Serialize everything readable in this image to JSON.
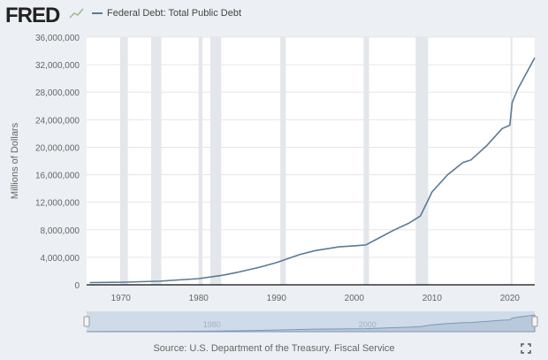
{
  "header": {
    "logo": "FRED",
    "legend_label": "Federal Debt: Total Public Debt",
    "source": "Source: U.S. Department of the Treasury. Fiscal Service"
  },
  "colors": {
    "line": "#5b7a95",
    "recession": "#e3e6ea",
    "nav_fill": "#b9c9dc"
  },
  "chart_data": {
    "type": "line",
    "title": "Federal Debt: Total Public Debt",
    "ylabel": "Millions of Dollars",
    "xlabel": "",
    "xlim": [
      1965.6,
      2023.2
    ],
    "ylim": [
      0,
      36000000
    ],
    "x_ticks": [
      1970,
      1980,
      1990,
      2000,
      2010,
      2020
    ],
    "x_tick_labels": [
      "1970",
      "1980",
      "1990",
      "2000",
      "2010",
      "2020"
    ],
    "y_ticks": [
      0,
      4000000,
      8000000,
      12000000,
      16000000,
      20000000,
      24000000,
      28000000,
      32000000,
      36000000
    ],
    "y_tick_labels": [
      "0",
      "4,000,000",
      "8,000,000",
      "12,000,000",
      "16,000,000",
      "20,000,000",
      "24,000,000",
      "28,000,000",
      "32,000,000",
      "36,000,000"
    ],
    "grid": true,
    "recessions": [
      [
        1969.9,
        1970.9
      ],
      [
        1973.9,
        1975.2
      ],
      [
        1980.0,
        1980.5
      ],
      [
        1981.5,
        1982.9
      ],
      [
        1990.5,
        1991.2
      ],
      [
        2001.2,
        2001.9
      ],
      [
        2007.9,
        2009.5
      ],
      [
        2020.1,
        2020.3
      ]
    ],
    "navigator_labels": [
      "1980",
      "2000"
    ],
    "series": [
      {
        "name": "Federal Debt: Total Public Debt",
        "x": [
          1966,
          1970,
          1975,
          1980,
          1983,
          1985,
          1988,
          1990,
          1993,
          1995,
          1998,
          2000,
          2001.5,
          2003,
          2005,
          2007,
          2008.5,
          2010,
          2012,
          2014,
          2015,
          2017,
          2019,
          2020.0,
          2020.3,
          2021,
          2022,
          2023.2
        ],
        "y": [
          320000,
          370000,
          530000,
          900000,
          1370000,
          1820000,
          2600000,
          3230000,
          4400000,
          4970000,
          5520000,
          5670000,
          5800000,
          6700000,
          7900000,
          8950000,
          10000000,
          13500000,
          16000000,
          17800000,
          18150000,
          20200000,
          22700000,
          23200000,
          26500000,
          28400000,
          30500000,
          33000000
        ]
      }
    ]
  }
}
